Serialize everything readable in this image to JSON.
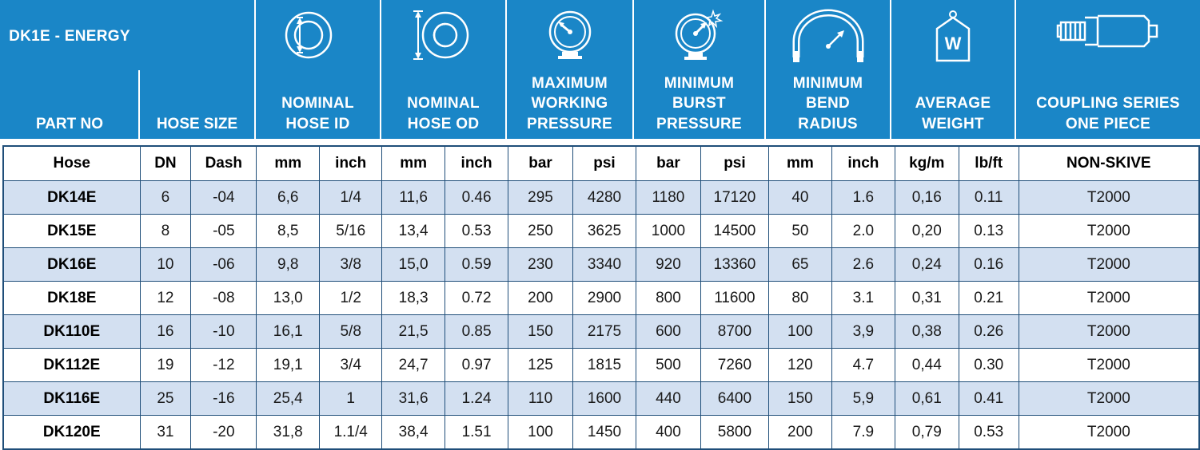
{
  "header": {
    "series_title": "DK1E - ENERGY",
    "part_no": "PART NO",
    "hose_size": "HOSE SIZE",
    "nominal_hose_id": "NOMINAL\nHOSE ID",
    "nominal_hose_od": "NOMINAL\nHOSE OD",
    "max_working_pressure": "MAXIMUM\nWORKING\nPRESSURE",
    "min_burst_pressure": "MINIMUM\nBURST\nPRESSURE",
    "min_bend_radius": "MINIMUM\nBEND\nRADIUS",
    "average_weight": "AVERAGE\nWEIGHT",
    "coupling_series": "COUPLING SERIES\nONE PIECE"
  },
  "icons": {
    "hose_id": "hose-inner-diameter-icon",
    "hose_od": "hose-outer-diameter-icon",
    "working_pressure": "pressure-gauge-icon",
    "burst_pressure": "burst-gauge-icon",
    "bend_radius": "bend-radius-icon",
    "weight": "weight-icon",
    "coupling": "coupling-fitting-icon",
    "weight_letter": "W"
  },
  "colors": {
    "header_blue": "#1a86c7",
    "row_shade": "#d3e0f1",
    "border": "#1f4e79"
  },
  "units": [
    "Hose",
    "DN",
    "Dash",
    "mm",
    "inch",
    "mm",
    "inch",
    "bar",
    "psi",
    "bar",
    "psi",
    "mm",
    "inch",
    "kg/m",
    "lb/ft",
    "NON-SKIVE"
  ],
  "rows": [
    [
      "DK14E",
      "6",
      "-04",
      "6,6",
      "1/4",
      "11,6",
      "0.46",
      "295",
      "4280",
      "1180",
      "17120",
      "40",
      "1.6",
      "0,16",
      "0.11",
      "T2000"
    ],
    [
      "DK15E",
      "8",
      "-05",
      "8,5",
      "5/16",
      "13,4",
      "0.53",
      "250",
      "3625",
      "1000",
      "14500",
      "50",
      "2.0",
      "0,20",
      "0.13",
      "T2000"
    ],
    [
      "DK16E",
      "10",
      "-06",
      "9,8",
      "3/8",
      "15,0",
      "0.59",
      "230",
      "3340",
      "920",
      "13360",
      "65",
      "2.6",
      "0,24",
      "0.16",
      "T2000"
    ],
    [
      "DK18E",
      "12",
      "-08",
      "13,0",
      "1/2",
      "18,3",
      "0.72",
      "200",
      "2900",
      "800",
      "11600",
      "80",
      "3.1",
      "0,31",
      "0.21",
      "T2000"
    ],
    [
      "DK110E",
      "16",
      "-10",
      "16,1",
      "5/8",
      "21,5",
      "0.85",
      "150",
      "2175",
      "600",
      "8700",
      "100",
      "3,9",
      "0,38",
      "0.26",
      "T2000"
    ],
    [
      "DK112E",
      "19",
      "-12",
      "19,1",
      "3/4",
      "24,7",
      "0.97",
      "125",
      "1815",
      "500",
      "7260",
      "120",
      "4.7",
      "0,44",
      "0.30",
      "T2000"
    ],
    [
      "DK116E",
      "25",
      "-16",
      "25,4",
      "1",
      "31,6",
      "1.24",
      "110",
      "1600",
      "440",
      "6400",
      "150",
      "5,9",
      "0,61",
      "0.41",
      "T2000"
    ],
    [
      "DK120E",
      "31",
      "-20",
      "31,8",
      "1.1/4",
      "38,4",
      "1.51",
      "100",
      "1450",
      "400",
      "5800",
      "200",
      "7.9",
      "0,79",
      "0.53",
      "T2000"
    ]
  ]
}
